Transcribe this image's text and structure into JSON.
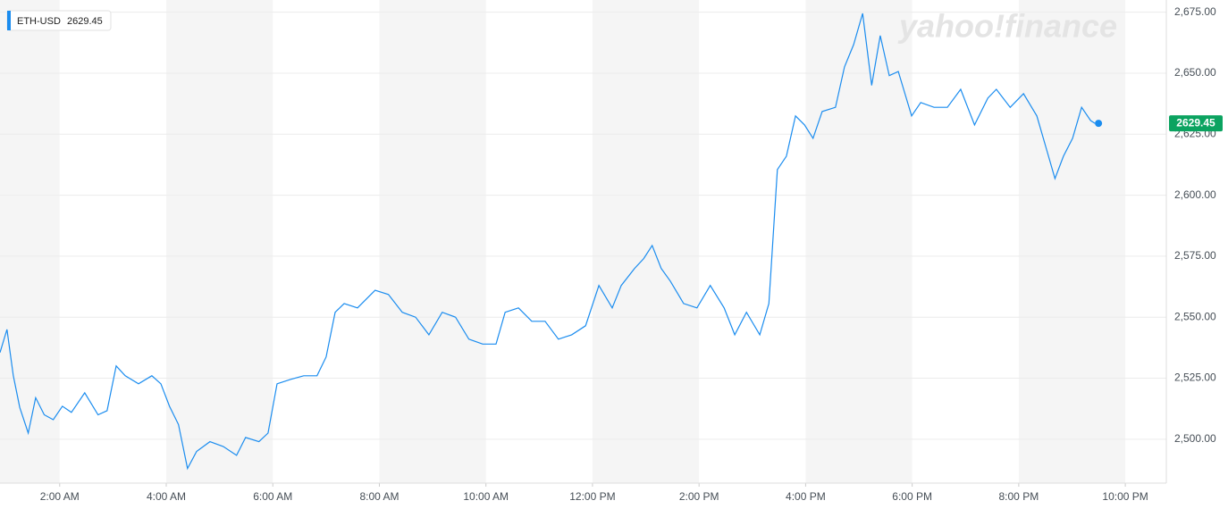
{
  "chart_data": {
    "type": "line",
    "watermark": "yahoo!finance",
    "xlim": [
      0.88,
      22.77
    ],
    "xticks": [
      {
        "value": 2,
        "label": "2:00 AM"
      },
      {
        "value": 4,
        "label": "4:00 AM"
      },
      {
        "value": 6,
        "label": "6:00 AM"
      },
      {
        "value": 8,
        "label": "8:00 AM"
      },
      {
        "value": 10,
        "label": "10:00 AM"
      },
      {
        "value": 12,
        "label": "12:00 PM"
      },
      {
        "value": 14,
        "label": "2:00 PM"
      },
      {
        "value": 16,
        "label": "4:00 PM"
      },
      {
        "value": 18,
        "label": "6:00 PM"
      },
      {
        "value": 20,
        "label": "8:00 PM"
      },
      {
        "value": 22,
        "label": "10:00 PM"
      }
    ],
    "ylim": [
      2482,
      2680
    ],
    "yticks": [
      {
        "value": 2500,
        "label": "2,500.00"
      },
      {
        "value": 2525,
        "label": "2,525.00"
      },
      {
        "value": 2550,
        "label": "2,550.00"
      },
      {
        "value": 2575,
        "label": "2,575.00"
      },
      {
        "value": 2600,
        "label": "2,600.00"
      },
      {
        "value": 2625,
        "label": "2,625.00"
      },
      {
        "value": 2650,
        "label": "2,650.00"
      },
      {
        "value": 2675,
        "label": "2,675.00"
      }
    ],
    "grid": true,
    "x": [
      0.88,
      1.01,
      1.13,
      1.25,
      1.41,
      1.55,
      1.71,
      1.88,
      2.05,
      2.22,
      2.47,
      2.72,
      2.89,
      3.06,
      3.23,
      3.48,
      3.73,
      3.9,
      4.06,
      4.23,
      4.4,
      4.57,
      4.82,
      5.07,
      5.32,
      5.49,
      5.74,
      5.91,
      6.08,
      6.33,
      6.58,
      6.83,
      7.0,
      7.17,
      7.34,
      7.59,
      7.92,
      8.17,
      8.43,
      8.68,
      8.93,
      9.18,
      9.43,
      9.68,
      9.94,
      10.19,
      10.36,
      10.61,
      10.86,
      11.11,
      11.36,
      11.61,
      11.87,
      12.12,
      12.37,
      12.54,
      12.79,
      12.96,
      13.12,
      13.29,
      13.46,
      13.71,
      13.96,
      14.21,
      14.47,
      14.67,
      14.89,
      15.14,
      15.31,
      15.47,
      15.64,
      15.81,
      15.98,
      16.14,
      16.31,
      16.56,
      16.73,
      16.9,
      17.07,
      17.24,
      17.4,
      17.57,
      17.74,
      17.99,
      18.16,
      18.41,
      18.66,
      18.91,
      19.17,
      19.42,
      19.58,
      19.84,
      20.09,
      20.34,
      20.51,
      20.68,
      20.84,
      21.01,
      21.18,
      21.35,
      21.43
    ],
    "series": [
      {
        "name": "ETH-USD",
        "color": "#1a8cef",
        "values": [
          2535.5,
          2545,
          2526,
          2513,
          2502.5,
          2517,
          2510,
          2508,
          2513.5,
          2511,
          2519,
          2510,
          2511.7,
          2530,
          2526,
          2522.7,
          2526,
          2522.7,
          2513.5,
          2506,
          2488,
          2495,
          2499,
          2497,
          2493.4,
          2500.7,
          2499,
          2502.5,
          2522.7,
          2524.5,
          2526,
          2526,
          2533.7,
          2552,
          2555.6,
          2553.8,
          2561,
          2559.3,
          2552,
          2550,
          2542.8,
          2552,
          2550,
          2541,
          2539,
          2539,
          2552,
          2553.8,
          2548.3,
          2548.3,
          2541,
          2542.8,
          2546.5,
          2563,
          2553.8,
          2563,
          2570,
          2574,
          2579.4,
          2570,
          2564.8,
          2555.6,
          2553.8,
          2563,
          2553.8,
          2542.8,
          2552,
          2542.8,
          2555.6,
          2610.5,
          2616,
          2632.5,
          2628.8,
          2623.3,
          2634.3,
          2636,
          2652.6,
          2661.7,
          2674.5,
          2645,
          2665.4,
          2649,
          2650.7,
          2632.5,
          2638,
          2636,
          2636,
          2643.4,
          2628.8,
          2639.8,
          2643.4,
          2636,
          2641.6,
          2632.5,
          2619.6,
          2606.8,
          2616,
          2623.3,
          2636,
          2630.6,
          2629.45
        ]
      }
    ]
  }
}
